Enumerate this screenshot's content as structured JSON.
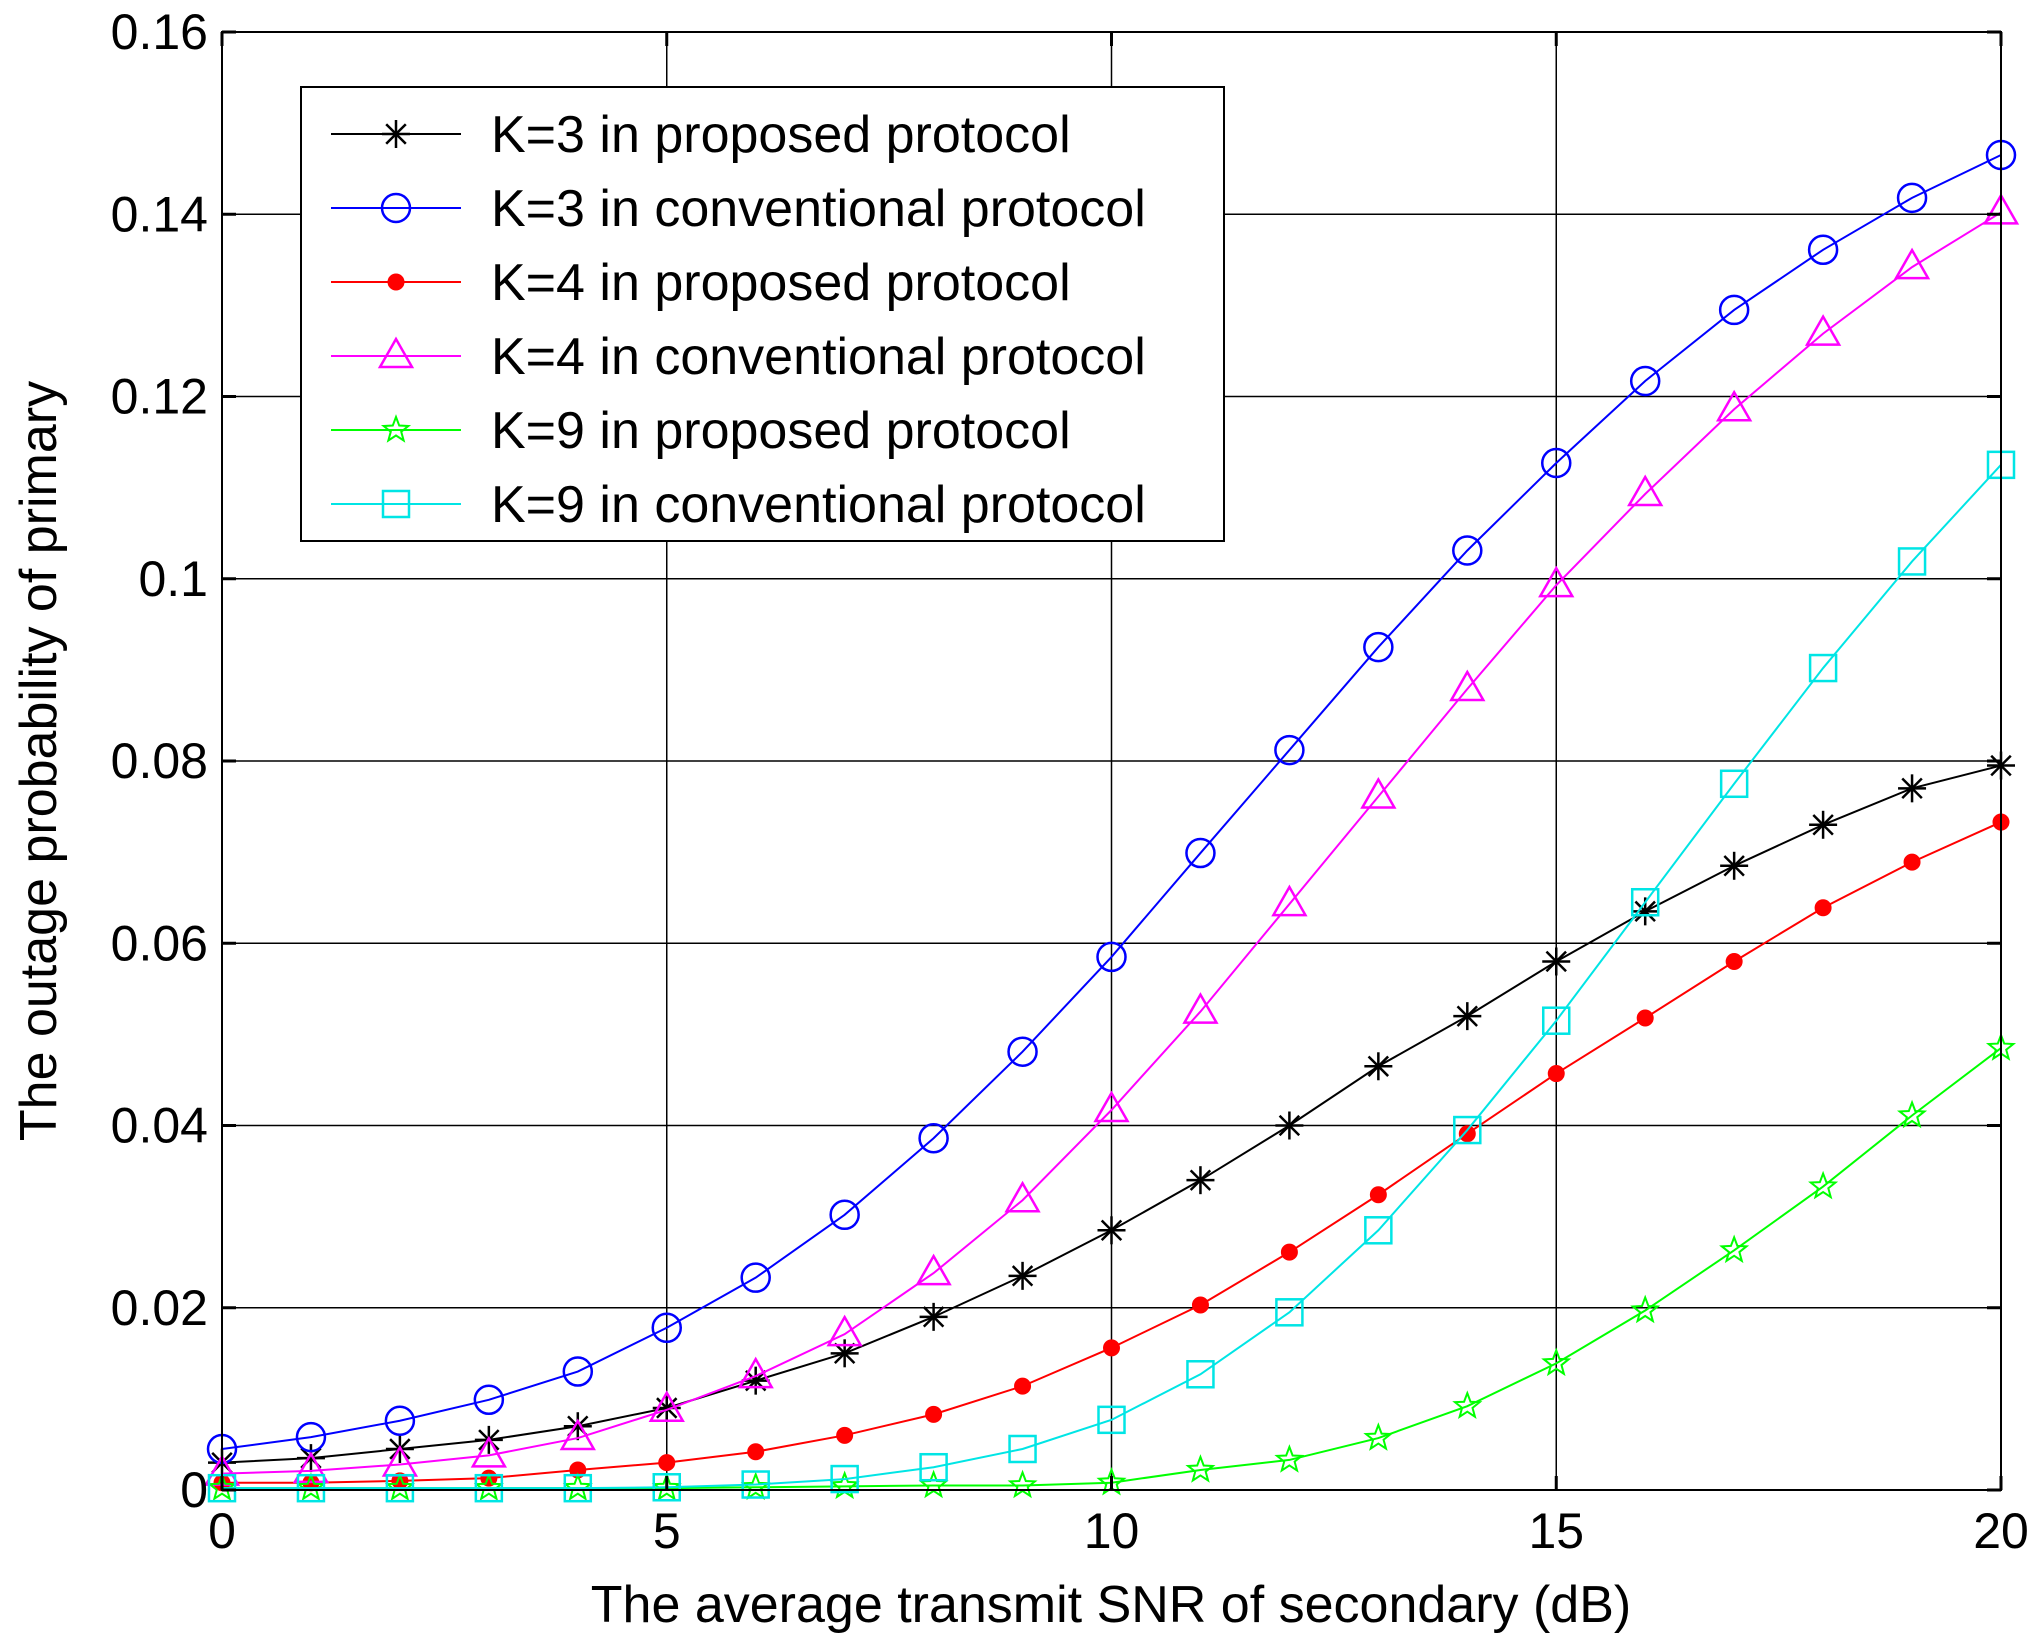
{
  "chart_data": {
    "type": "line",
    "xlabel": "The average transmit SNR of secondary (dB)",
    "ylabel": "The outage probability of primary",
    "xlim": [
      0,
      20
    ],
    "ylim": [
      0,
      0.16
    ],
    "xticks": [
      0,
      5,
      10,
      15,
      20
    ],
    "xtick_labels": [
      "0",
      "5",
      "10",
      "15",
      "20"
    ],
    "yticks": [
      0,
      0.02,
      0.04,
      0.06,
      0.08,
      0.1,
      0.12,
      0.14,
      0.16
    ],
    "ytick_labels": [
      "0",
      "0.02",
      "0.04",
      "0.06",
      "0.08",
      "0.1",
      "0.12",
      "0.14",
      "0.16"
    ],
    "grid": true,
    "legend_position": "top-left",
    "x": [
      0,
      1,
      2,
      3,
      4,
      5,
      6,
      7,
      8,
      9,
      10,
      11,
      12,
      13,
      14,
      15,
      16,
      17,
      18,
      19,
      20
    ],
    "series": [
      {
        "name": "K=3 in proposed protocol",
        "color": "#000000",
        "marker": "asterisk",
        "values": [
          0.003,
          0.0035,
          0.0045,
          0.0055,
          0.007,
          0.009,
          0.012,
          0.015,
          0.019,
          0.0235,
          0.0285,
          0.034,
          0.04,
          0.0465,
          0.052,
          0.058,
          0.0635,
          0.0685,
          0.073,
          0.077,
          0.0795
        ]
      },
      {
        "name": "K=3 in conventional protocol",
        "color": "#0000ff",
        "marker": "circle",
        "values": [
          0.0045,
          0.0058,
          0.0076,
          0.0099,
          0.013,
          0.0178,
          0.0233,
          0.0302,
          0.0386,
          0.0481,
          0.0585,
          0.0699,
          0.0812,
          0.0925,
          0.1031,
          0.1127,
          0.1217,
          0.1295,
          0.1361,
          0.1418,
          0.1465
        ]
      },
      {
        "name": "K=4 in proposed protocol",
        "color": "#ff0000",
        "marker": "dot",
        "values": [
          0.0008,
          0.0008,
          0.001,
          0.0013,
          0.0022,
          0.003,
          0.0042,
          0.006,
          0.0083,
          0.0114,
          0.0156,
          0.0203,
          0.0261,
          0.0324,
          0.0391,
          0.0457,
          0.0518,
          0.058,
          0.0639,
          0.0689,
          0.0733
        ]
      },
      {
        "name": "K=4 in conventional protocol",
        "color": "#ff00ff",
        "marker": "triangle",
        "values": [
          0.0018,
          0.0021,
          0.0028,
          0.0038,
          0.0057,
          0.0088,
          0.0125,
          0.0171,
          0.0238,
          0.0318,
          0.0417,
          0.0525,
          0.0643,
          0.0761,
          0.0879,
          0.0993,
          0.1093,
          0.1186,
          0.1269,
          0.1342,
          0.1402
        ]
      },
      {
        "name": "K=9 in proposed protocol",
        "color": "#00ff00",
        "marker": "star",
        "values": [
          0.0002,
          0.0002,
          0.0002,
          0.0002,
          0.0002,
          0.0002,
          0.0003,
          0.0004,
          0.0005,
          0.0005,
          0.0008,
          0.0022,
          0.0033,
          0.0057,
          0.0092,
          0.0139,
          0.0197,
          0.0263,
          0.0333,
          0.0411,
          0.0485
        ]
      },
      {
        "name": "K=9 in conventional protocol",
        "color": "#00e5e5",
        "marker": "square",
        "values": [
          0.0002,
          0.0002,
          0.0002,
          0.0002,
          0.0002,
          0.0003,
          0.0006,
          0.0012,
          0.0025,
          0.0045,
          0.0077,
          0.0127,
          0.0195,
          0.0285,
          0.0395,
          0.0515,
          0.0645,
          0.0775,
          0.0902,
          0.1019,
          0.1125
        ]
      }
    ]
  }
}
